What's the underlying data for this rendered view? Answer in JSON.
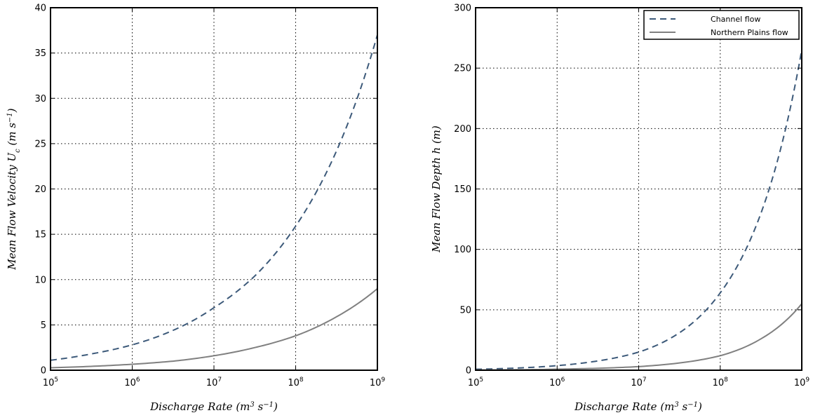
{
  "chart_data": [
    {
      "type": "line",
      "xscale": "log",
      "xlim": [
        100000,
        1000000000
      ],
      "ylim": [
        0,
        40
      ],
      "xticks": [
        100000,
        1000000,
        10000000,
        100000000,
        1000000000
      ],
      "xtick_labels": [
        {
          "base": "10",
          "exp": "5"
        },
        {
          "base": "10",
          "exp": "6"
        },
        {
          "base": "10",
          "exp": "7"
        },
        {
          "base": "10",
          "exp": "8"
        },
        {
          "base": "10",
          "exp": "9"
        }
      ],
      "yticks": [
        0,
        5,
        10,
        15,
        20,
        25,
        30,
        35,
        40
      ],
      "ytick_labels": [
        "0",
        "5",
        "10",
        "15",
        "20",
        "25",
        "30",
        "35",
        "40"
      ],
      "xlabel": "Discharge Rate (m³ s⁻¹)",
      "ylabel": "Mean Flow Velocity Uc (m s⁻¹)",
      "grid": true,
      "x": [
        100000,
        316228,
        1000000,
        3162278,
        10000000,
        31622777,
        100000000,
        316227766,
        1000000000
      ],
      "series": [
        {
          "style": "dashed",
          "color": "#3d5a7a",
          "values": [
            1.1,
            1.8,
            2.8,
            4.4,
            6.9,
            10.4,
            15.9,
            24.2,
            37.0
          ]
        },
        {
          "style": "solid",
          "color": "#808080",
          "values": [
            0.27,
            0.43,
            0.66,
            1.0,
            1.6,
            2.5,
            3.8,
            5.9,
            9.0
          ]
        }
      ]
    },
    {
      "type": "line",
      "xscale": "log",
      "xlim": [
        100000,
        1000000000
      ],
      "ylim": [
        0,
        300
      ],
      "xticks": [
        100000,
        1000000,
        10000000,
        100000000,
        1000000000
      ],
      "xtick_labels": [
        {
          "base": "10",
          "exp": "5"
        },
        {
          "base": "10",
          "exp": "6"
        },
        {
          "base": "10",
          "exp": "7"
        },
        {
          "base": "10",
          "exp": "8"
        },
        {
          "base": "10",
          "exp": "9"
        }
      ],
      "yticks": [
        0,
        50,
        100,
        150,
        200,
        250,
        300
      ],
      "ytick_labels": [
        "0",
        "50",
        "100",
        "150",
        "200",
        "250",
        "300"
      ],
      "xlabel": "Discharge Rate (m³ s⁻¹)",
      "ylabel": "Mean Flow Depth h (m)",
      "grid": true,
      "legend": "top-right",
      "x": [
        100000,
        316228,
        1000000,
        3162278,
        10000000,
        31622777,
        100000000,
        316227766,
        1000000000
      ],
      "series": [
        {
          "name": "Channel flow",
          "style": "dashed",
          "color": "#3d5a7a",
          "values": [
            0.8,
            1.8,
            3.8,
            7.7,
            15,
            31,
            64,
            130,
            265
          ]
        },
        {
          "name": "Northern Plains flow",
          "style": "solid",
          "color": "#808080",
          "values": [
            0.2,
            0.4,
            0.9,
            1.6,
            3.0,
            6.0,
            12,
            26,
            55
          ]
        }
      ]
    }
  ]
}
